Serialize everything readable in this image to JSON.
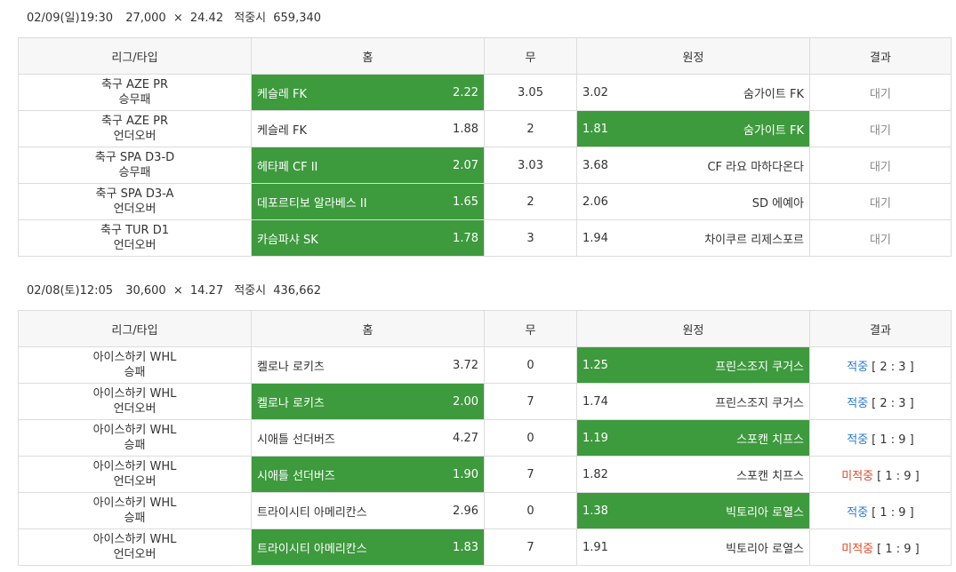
{
  "columns": {
    "league": "리그/타입",
    "home": "홈",
    "draw": "무",
    "away": "원정",
    "result": "결과"
  },
  "slips": [
    {
      "date": "02/09(일)19:30",
      "stake": "27,000",
      "times": "×",
      "odds": "24.42",
      "payout_label": "적중시",
      "payout": "659,340",
      "rows": [
        {
          "league": "축구 AZE PR",
          "type": "승무패",
          "home": "케슬레 FK",
          "home_odds": "2.22",
          "draw": "3.05",
          "away_odds": "3.02",
          "away": "숨가이트 FK",
          "pick": "home",
          "result": "대기",
          "result_status": "pending",
          "score": ""
        },
        {
          "league": "축구 AZE PR",
          "type": "언더오버",
          "home": "케슬레 FK",
          "home_odds": "1.88",
          "draw": "2",
          "away_odds": "1.81",
          "away": "숨가이트 FK",
          "pick": "away",
          "result": "대기",
          "result_status": "pending",
          "score": ""
        },
        {
          "league": "축구 SPA D3-D",
          "type": "승무패",
          "home": "헤타페 CF II",
          "home_odds": "2.07",
          "draw": "3.03",
          "away_odds": "3.68",
          "away": "CF 라요 마하다온다",
          "pick": "home",
          "result": "대기",
          "result_status": "pending",
          "score": ""
        },
        {
          "league": "축구 SPA D3-A",
          "type": "언더오버",
          "home": "데포르티보 알라베스 II",
          "home_odds": "1.65",
          "draw": "2",
          "away_odds": "2.06",
          "away": "SD 에예아",
          "pick": "home",
          "result": "대기",
          "result_status": "pending",
          "score": ""
        },
        {
          "league": "축구 TUR D1",
          "type": "언더오버",
          "home": "카슴파샤 SK",
          "home_odds": "1.78",
          "draw": "3",
          "away_odds": "1.94",
          "away": "차이쿠르 리제스포르",
          "pick": "home",
          "result": "대기",
          "result_status": "pending",
          "score": ""
        }
      ]
    },
    {
      "date": "02/08(토)12:05",
      "stake": "30,600",
      "times": "×",
      "odds": "14.27",
      "payout_label": "적중시",
      "payout": "436,662",
      "rows": [
        {
          "league": "아이스하키 WHL",
          "type": "승패",
          "home": "켈로나 로키츠",
          "home_odds": "3.72",
          "draw": "0",
          "away_odds": "1.25",
          "away": "프린스조지 쿠거스",
          "pick": "away",
          "result": "적중",
          "result_status": "hit",
          "score": "[ 2 : 3 ]"
        },
        {
          "league": "아이스하키 WHL",
          "type": "언더오버",
          "home": "켈로나 로키츠",
          "home_odds": "2.00",
          "draw": "7",
          "away_odds": "1.74",
          "away": "프린스조지 쿠거스",
          "pick": "home",
          "result": "적중",
          "result_status": "hit",
          "score": "[ 2 : 3 ]"
        },
        {
          "league": "아이스하키 WHL",
          "type": "승패",
          "home": "시애틀 선더버즈",
          "home_odds": "4.27",
          "draw": "0",
          "away_odds": "1.19",
          "away": "스포캔 치프스",
          "pick": "away",
          "result": "적중",
          "result_status": "hit",
          "score": "[ 1 : 9 ]"
        },
        {
          "league": "아이스하키 WHL",
          "type": "언더오버",
          "home": "시애틀 선더버즈",
          "home_odds": "1.90",
          "draw": "7",
          "away_odds": "1.82",
          "away": "스포캔 치프스",
          "pick": "home",
          "result": "미적중",
          "result_status": "miss",
          "score": "[ 1 : 9 ]"
        },
        {
          "league": "아이스하키 WHL",
          "type": "승패",
          "home": "트라이시티 아메리칸스",
          "home_odds": "2.96",
          "draw": "0",
          "away_odds": "1.38",
          "away": "빅토리아 로열스",
          "pick": "away",
          "result": "적중",
          "result_status": "hit",
          "score": "[ 1 : 9 ]"
        },
        {
          "league": "아이스하키 WHL",
          "type": "언더오버",
          "home": "트라이시티 아메리칸스",
          "home_odds": "1.83",
          "draw": "7",
          "away_odds": "1.91",
          "away": "빅토리아 로열스",
          "pick": "home",
          "result": "미적중",
          "result_status": "miss",
          "score": "[ 1 : 9 ]"
        }
      ]
    }
  ],
  "colors": {
    "pick_bg": "#3d9a3d",
    "hit": "#2a7ad6",
    "miss": "#e04b2a",
    "pending": "#888888"
  }
}
